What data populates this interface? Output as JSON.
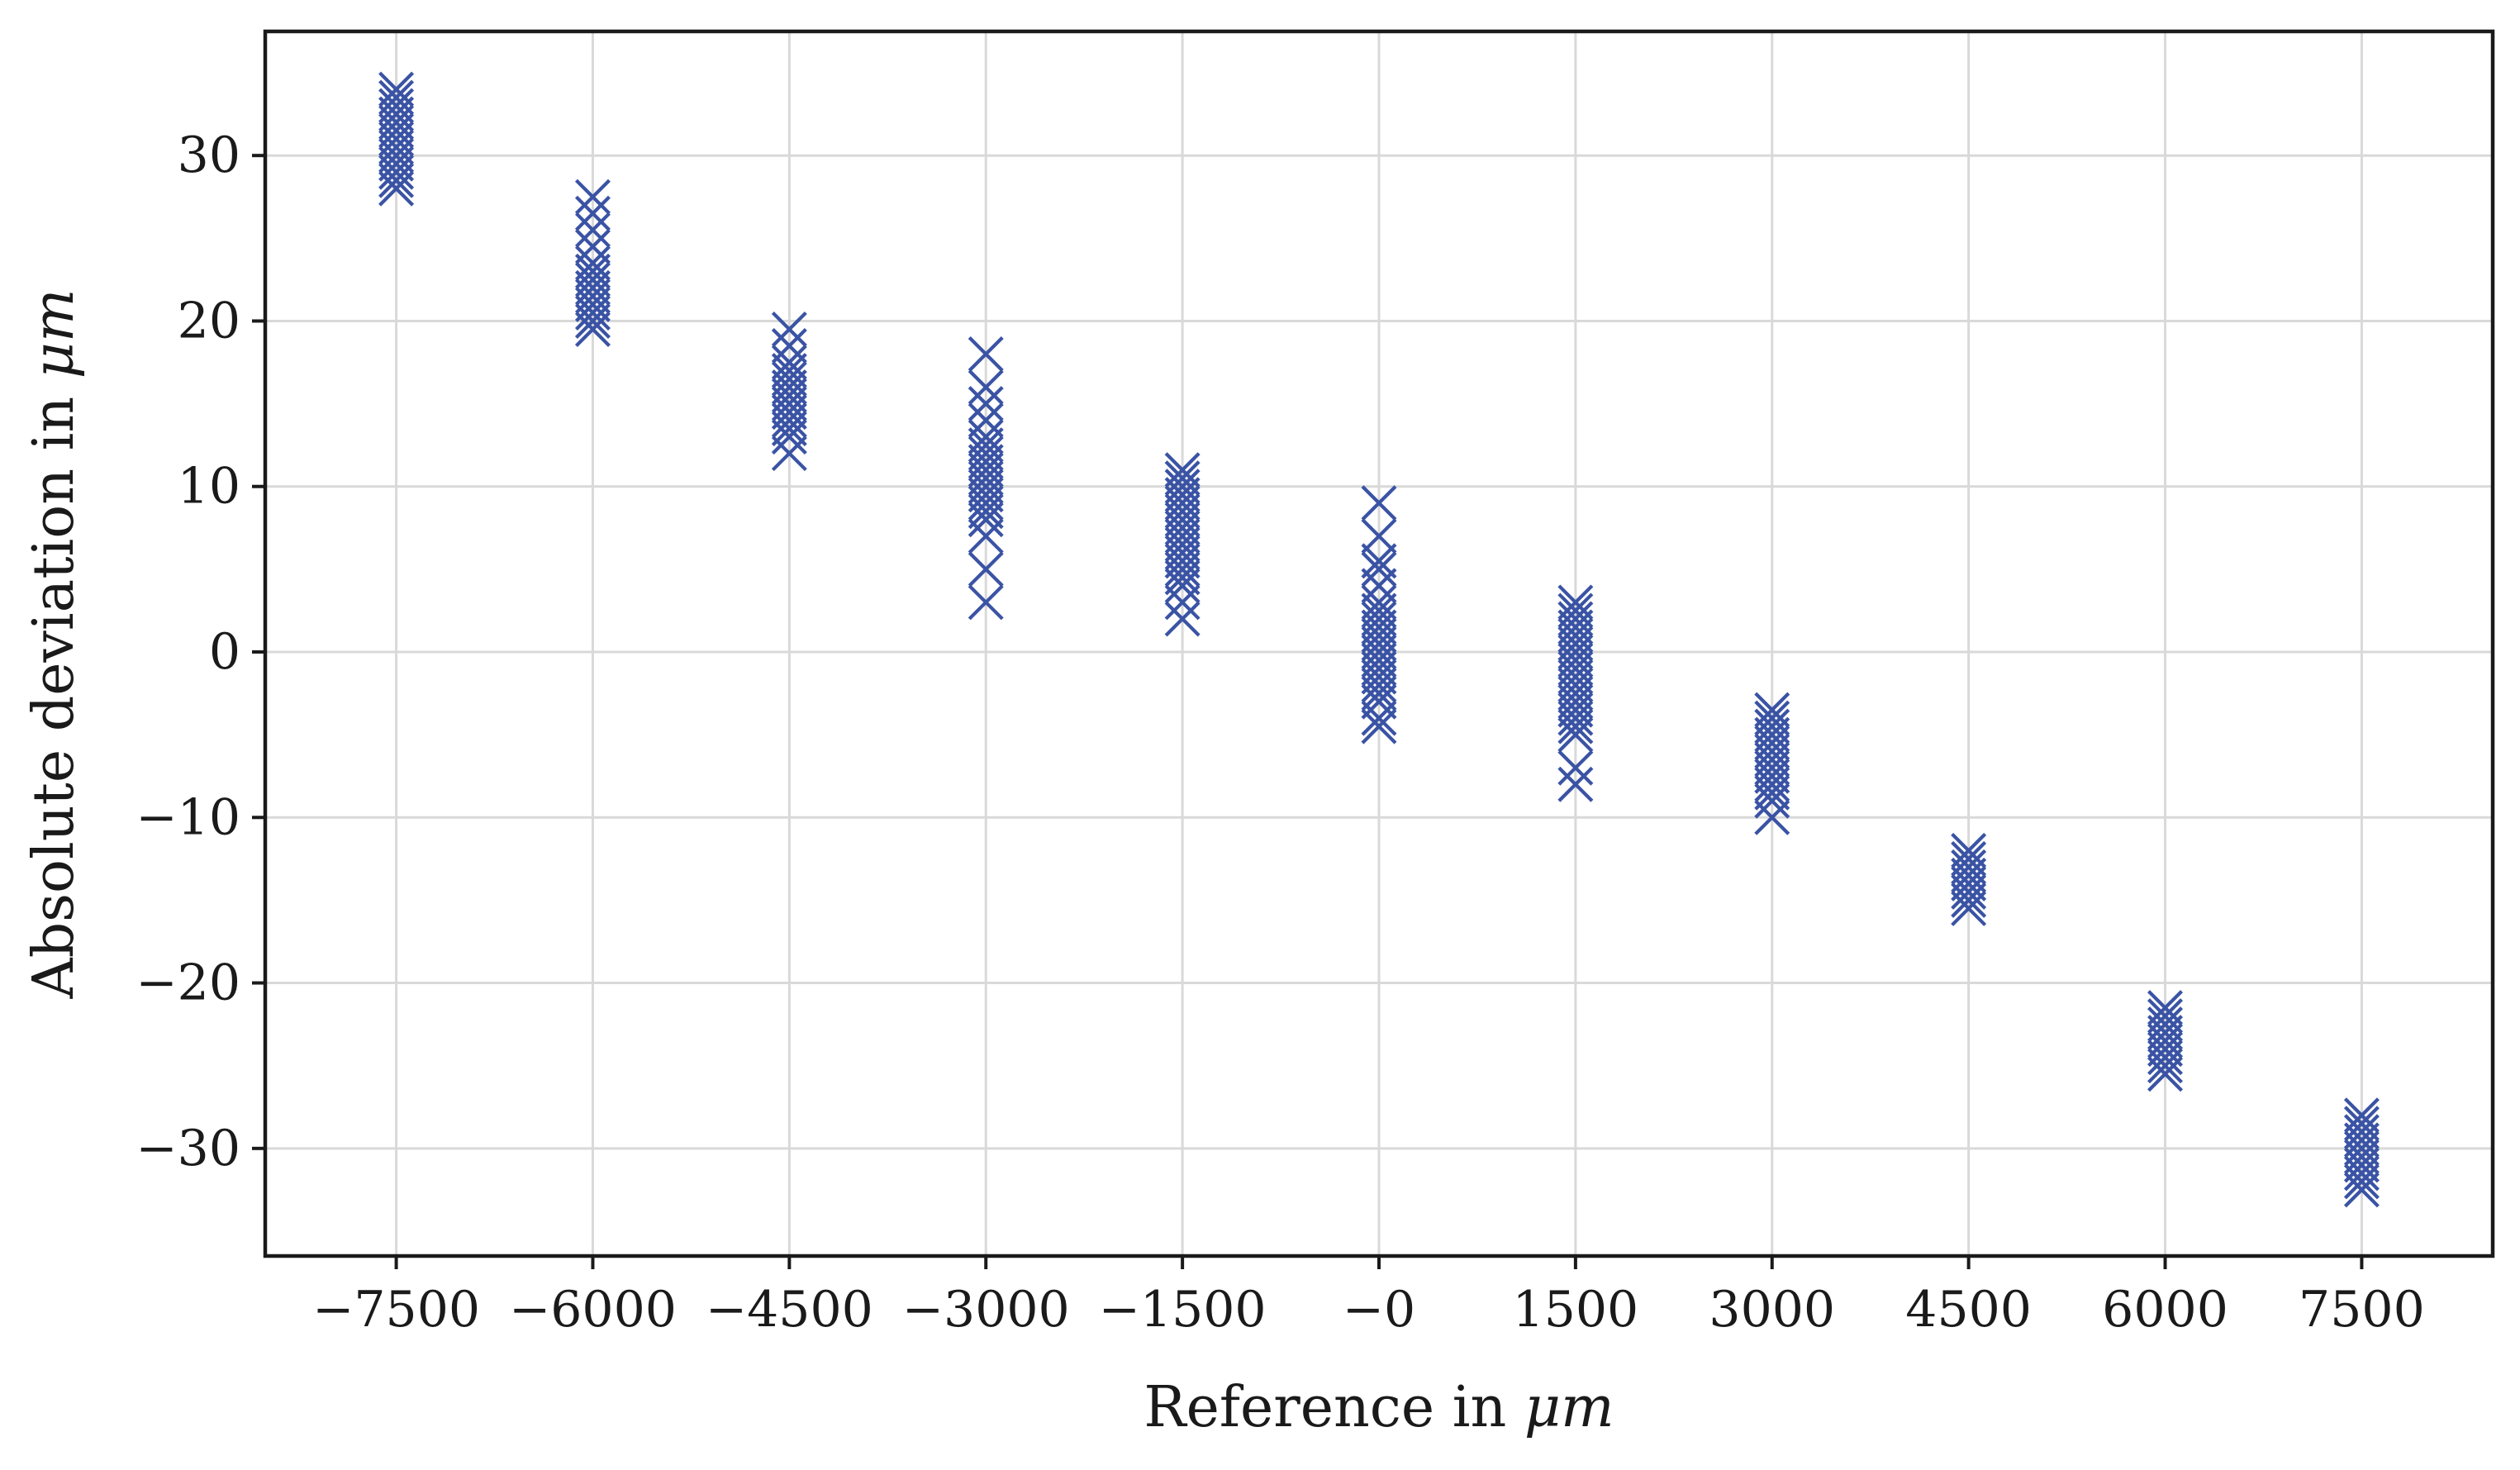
{
  "chart_data": {
    "type": "scatter",
    "title": "",
    "xlabel": "Reference in",
    "xlabel_unit": "μm",
    "ylabel": "Absolute deviation in",
    "ylabel_unit": "μm",
    "xlim": [
      -8500,
      8500
    ],
    "ylim": [
      -36.5,
      37.5
    ],
    "grid": true,
    "marker": "x",
    "color": "#3a53a4",
    "x_ticks": [
      -7500,
      -6000,
      -4500,
      -3000,
      -1500,
      0,
      1500,
      3000,
      4500,
      6000,
      7500
    ],
    "x_tick_labels": [
      "−7500",
      "−6000",
      "−4500",
      "−3000",
      "−1500",
      "−0",
      "1500",
      "3000",
      "4500",
      "6000",
      "7500"
    ],
    "y_ticks": [
      30,
      20,
      10,
      0,
      -10,
      -20,
      -30
    ],
    "y_tick_labels": [
      "30",
      "20",
      "10",
      "0",
      "−10",
      "−20",
      "−30"
    ],
    "groups": [
      {
        "x": -7500,
        "y": [
          34,
          33.5,
          33,
          32.5,
          32,
          31.5,
          31,
          30.5,
          30,
          29.5,
          29,
          28.5,
          28
        ]
      },
      {
        "x": -6000,
        "y": [
          27.5,
          26.5,
          25.5,
          24.5,
          23.5,
          23,
          22.5,
          22,
          21.5,
          21,
          20.5,
          20,
          19.5
        ]
      },
      {
        "x": -4500,
        "y": [
          19.5,
          18.5,
          17.5,
          17,
          16.5,
          16,
          15.5,
          15,
          14.5,
          14,
          13.5,
          13,
          12
        ]
      },
      {
        "x": -3000,
        "y": [
          18,
          16,
          15,
          14,
          13,
          12.5,
          12,
          11.5,
          11,
          10.5,
          10,
          9.5,
          9,
          8.5,
          8,
          7,
          5,
          3
        ]
      },
      {
        "x": -1500,
        "y": [
          11,
          10.5,
          10,
          9.5,
          9,
          8.5,
          8,
          7.5,
          7,
          6.5,
          6,
          5.5,
          5,
          4.5,
          4,
          3,
          2
        ]
      },
      {
        "x": 0,
        "y": [
          9,
          7,
          5.5,
          5,
          4,
          3,
          2.5,
          2,
          1.5,
          1,
          0.5,
          0,
          -0.5,
          -1,
          -1.5,
          -2,
          -2.5,
          -3,
          -4,
          -4.5
        ]
      },
      {
        "x": 1500,
        "y": [
          3,
          2.5,
          2,
          1.5,
          1,
          0.5,
          0,
          -0.5,
          -1,
          -1.5,
          -2,
          -2.5,
          -3,
          -3.5,
          -4,
          -4.5,
          -5,
          -7,
          -8
        ]
      },
      {
        "x": 3000,
        "y": [
          -3.5,
          -4,
          -4.5,
          -5,
          -5.5,
          -6,
          -6.5,
          -7,
          -7.5,
          -8,
          -8.5,
          -9,
          -10
        ]
      },
      {
        "x": 4500,
        "y": [
          -12,
          -12.5,
          -13,
          -13.5,
          -14,
          -14.5,
          -15,
          -15.5
        ]
      },
      {
        "x": 6000,
        "y": [
          -21.5,
          -22,
          -22.5,
          -23,
          -23.5,
          -24,
          -24.5,
          -25,
          -25.5
        ]
      },
      {
        "x": 7500,
        "y": [
          -28,
          -28.5,
          -29,
          -29.5,
          -30,
          -30.5,
          -31,
          -31.5,
          -32,
          -32.5
        ]
      }
    ]
  }
}
